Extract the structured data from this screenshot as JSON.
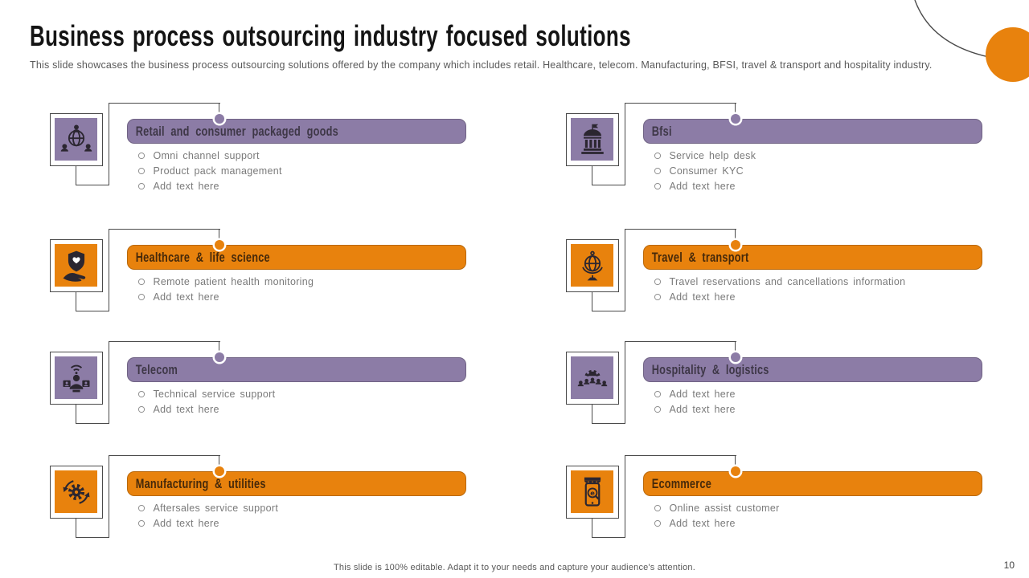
{
  "slide": {
    "title": "Business process outsourcing industry focused solutions",
    "subtitle": "This slide showcases the business process outsourcing solutions offered by the company which includes retail. Healthcare, telecom. Manufacturing, BFSI, travel & transport and hospitality industry.",
    "footer": "This slide is 100% editable. Adapt it to your needs and capture your audience's attention.",
    "page_number": "10"
  },
  "colors": {
    "purple": "#8C7CA6",
    "orange": "#E8820D",
    "line": "#4a4a4a",
    "header_text_on_purple": "#3E3747",
    "header_text_on_orange": "#46290A",
    "bullet_text": "#7a7a7a",
    "subtitle_text": "#595959"
  },
  "sections": [
    {
      "id": "retail",
      "title": "Retail and consumer packaged goods",
      "theme": "purple",
      "icon": "globe-people-network-icon",
      "bullets": [
        "Omni channel support",
        "Product pack management",
        "Add text here"
      ]
    },
    {
      "id": "healthcare",
      "title": "Healthcare & life science",
      "theme": "orange",
      "icon": "hand-shield-heart-icon",
      "bullets": [
        "Remote patient health monitoring",
        "Add text here"
      ]
    },
    {
      "id": "telecom",
      "title": "Telecom",
      "theme": "purple",
      "icon": "call-center-agent-icon",
      "bullets": [
        "Technical service support",
        "Add text here"
      ]
    },
    {
      "id": "manufacturing",
      "title": "Manufacturing & utilities",
      "theme": "orange",
      "icon": "gear-cycle-arrows-icon",
      "bullets": [
        "Aftersales service support",
        "Add text here"
      ]
    },
    {
      "id": "bfsi",
      "title": "Bfsi",
      "theme": "purple",
      "icon": "bank-building-icon",
      "bullets": [
        "Service help desk",
        "Consumer KYC",
        "Add text here"
      ]
    },
    {
      "id": "travel",
      "title": "Travel & transport",
      "theme": "orange",
      "icon": "globe-stand-icon",
      "bullets": [
        "Travel reservations and cancellations information",
        "Add text here"
      ]
    },
    {
      "id": "hospitality",
      "title": "Hospitality & logistics",
      "theme": "purple",
      "icon": "team-gear-icon",
      "bullets": [
        "Add text here",
        "Add text here"
      ]
    },
    {
      "id": "ecommerce",
      "title": "Ecommerce",
      "theme": "orange",
      "icon": "mobile-shop-search-icon",
      "bullets": [
        "Online assist customer",
        "Add text here"
      ]
    }
  ]
}
